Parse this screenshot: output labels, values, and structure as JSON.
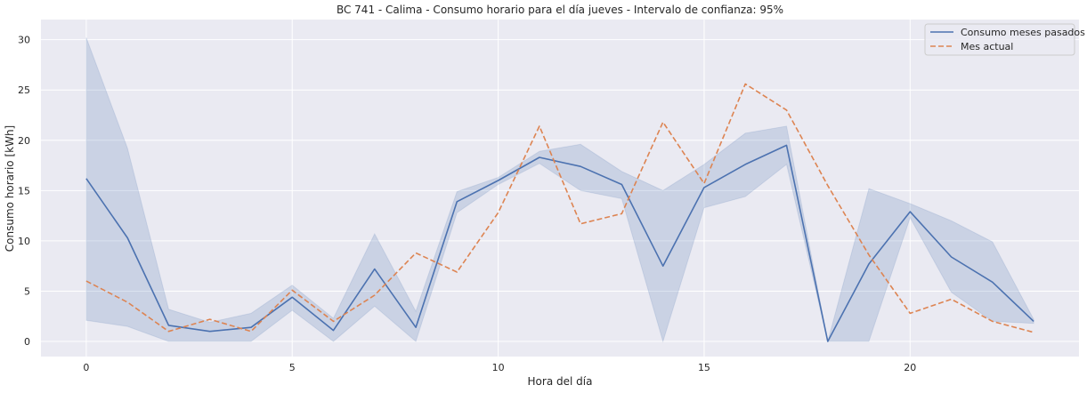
{
  "chart_data": {
    "type": "line",
    "title": "BC 741 - Calima - Consumo horario para el día jueves - Intervalo de confianza: 95%",
    "xlabel": "Hora del día",
    "ylabel": "Consumo horario [kWh]",
    "xlim": [
      -1.1,
      24.1
    ],
    "ylim": [
      -1.5,
      32
    ],
    "xticks": [
      0,
      5,
      10,
      15,
      20
    ],
    "yticks": [
      0,
      5,
      10,
      15,
      20,
      25,
      30
    ],
    "grid": true,
    "legend_position": "top-right",
    "x": [
      0,
      1,
      2,
      3,
      4,
      5,
      6,
      7,
      8,
      9,
      10,
      11,
      12,
      13,
      14,
      15,
      16,
      17,
      18,
      19,
      20,
      21,
      22,
      23
    ],
    "series": [
      {
        "name": "Consumo meses pasados",
        "style": "solid",
        "color": "#4c72b0",
        "values": [
          16.2,
          10.3,
          1.6,
          1.0,
          1.4,
          4.4,
          1.1,
          7.2,
          1.4,
          13.9,
          16.0,
          18.3,
          17.4,
          15.6,
          7.5,
          15.3,
          17.6,
          19.5,
          0.0,
          7.7,
          12.9,
          8.4,
          5.9,
          2.0
        ],
        "ci_lower": [
          2.1,
          1.5,
          0.0,
          0.0,
          0.0,
          3.1,
          0.0,
          3.5,
          0.0,
          12.8,
          15.6,
          17.7,
          15.0,
          14.2,
          0.0,
          13.3,
          14.4,
          17.6,
          0.0,
          0.0,
          12.3,
          4.9,
          2.0,
          1.8
        ],
        "ci_upper": [
          30.2,
          19.2,
          3.2,
          1.9,
          2.8,
          5.6,
          2.3,
          10.7,
          3.0,
          14.9,
          16.3,
          18.9,
          19.6,
          16.9,
          15.0,
          17.6,
          20.7,
          21.4,
          0.0,
          15.2,
          13.7,
          12.0,
          9.9,
          2.2
        ],
        "ci_color": "#4c72b0"
      },
      {
        "name": "Mes actual",
        "style": "dashed",
        "color": "#dd8452",
        "values": [
          6.0,
          3.9,
          1.0,
          2.2,
          1.0,
          5.1,
          2.0,
          4.6,
          8.8,
          6.9,
          12.8,
          21.4,
          11.7,
          12.7,
          21.8,
          15.7,
          25.6,
          23.0,
          15.5,
          8.6,
          2.8,
          4.2,
          2.0,
          0.9
        ]
      }
    ]
  }
}
